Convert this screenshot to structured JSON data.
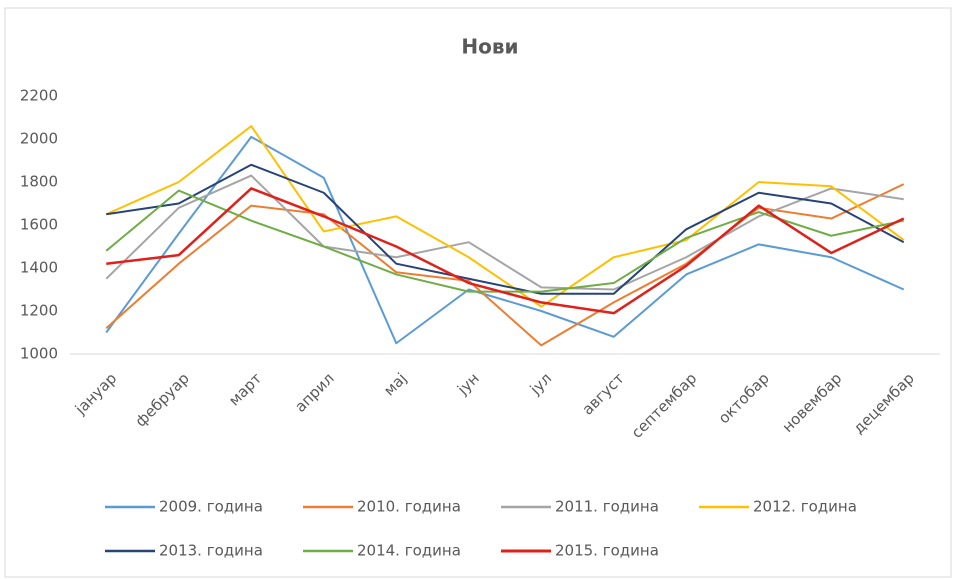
{
  "chart_data": {
    "type": "line",
    "title": "Нови",
    "categories": [
      "јануар",
      "фебруар",
      "март",
      "април",
      "мај",
      "јун",
      "јул",
      "август",
      "септембар",
      "октобар",
      "новембар",
      "децембар"
    ],
    "series": [
      {
        "name": "2009. година",
        "color": "#5b9bd5",
        "values": [
          1100,
          1560,
          2010,
          1820,
          1050,
          1300,
          1200,
          1080,
          1370,
          1510,
          1450,
          1300
        ]
      },
      {
        "name": "2010. година",
        "color": "#ed7d31",
        "values": [
          1120,
          1420,
          1690,
          1650,
          1380,
          1340,
          1040,
          1240,
          1420,
          1680,
          1630,
          1790
        ]
      },
      {
        "name": "2011. година",
        "color": "#a5a5a5",
        "values": [
          1350,
          1680,
          1830,
          1500,
          1450,
          1520,
          1310,
          1300,
          1450,
          1640,
          1770,
          1720
        ]
      },
      {
        "name": "2012. година",
        "color": "#ffc000",
        "values": [
          1650,
          1800,
          2060,
          1570,
          1640,
          1450,
          1220,
          1450,
          1530,
          1800,
          1780,
          1530
        ]
      },
      {
        "name": "2013. година",
        "color": "#264478",
        "values": [
          1650,
          1700,
          1880,
          1750,
          1420,
          1350,
          1280,
          1280,
          1580,
          1750,
          1700,
          1520
        ]
      },
      {
        "name": "2014. година",
        "color": "#70ad47",
        "values": [
          1480,
          1760,
          1620,
          1500,
          1370,
          1290,
          1290,
          1330,
          1540,
          1660,
          1550,
          1620
        ]
      },
      {
        "name": "2015. година",
        "color": "#e0201b",
        "values": [
          1420,
          1460,
          1770,
          1640,
          1500,
          1330,
          1240,
          1190,
          1410,
          1690,
          1470,
          1630
        ]
      }
    ],
    "ylim": [
      1000,
      2200
    ],
    "yticks": [
      1000,
      1200,
      1400,
      1600,
      1800,
      2000,
      2200
    ],
    "grid": false,
    "legend": "bottom"
  }
}
